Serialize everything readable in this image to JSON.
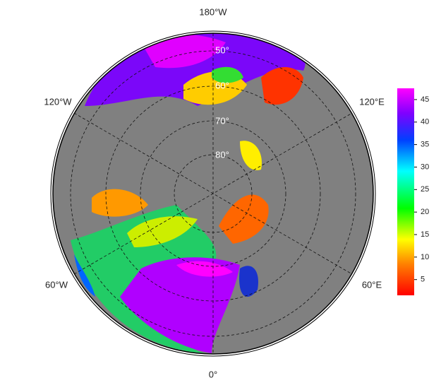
{
  "map": {
    "longitude_labels": [
      "180°W",
      "120°W",
      "120°E",
      "60°W",
      "60°E",
      "0°"
    ],
    "latitude_labels": [
      "50°",
      "60°",
      "70°",
      "80°"
    ]
  },
  "colorbar": {
    "range": [
      1.5,
      47.5
    ],
    "ticks": [
      5,
      10,
      15,
      20,
      25,
      30,
      35,
      40,
      45
    ]
  }
}
